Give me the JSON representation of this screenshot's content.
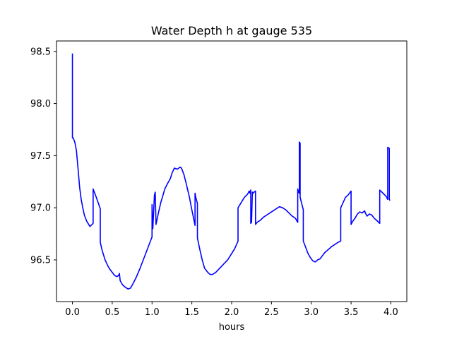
{
  "chart_data": {
    "type": "line",
    "title": "Water Depth h at gauge 535",
    "xlabel": "hours",
    "ylabel": "",
    "xlim": [
      -0.2,
      4.2
    ],
    "ylim": [
      96.1,
      98.6
    ],
    "xticks": [
      0.0,
      0.5,
      1.0,
      1.5,
      2.0,
      2.5,
      3.0,
      3.5,
      4.0
    ],
    "xtick_labels": [
      "0.0",
      "0.5",
      "1.0",
      "1.5",
      "2.0",
      "2.5",
      "3.0",
      "3.5",
      "4.0"
    ],
    "yticks": [
      96.5,
      97.0,
      97.5,
      98.0,
      98.5
    ],
    "ytick_labels": [
      "96.5",
      "97.0",
      "97.5",
      "98.0",
      "98.5"
    ],
    "grid": false,
    "legend": "none",
    "series": [
      {
        "color": "#0000ff",
        "x": [
          0.0,
          0.0,
          0.0,
          0.01,
          0.03,
          0.05,
          0.07,
          0.09,
          0.11,
          0.13,
          0.15,
          0.18,
          0.22,
          0.26,
          0.26,
          0.3,
          0.35,
          0.35,
          0.37,
          0.39,
          0.41,
          0.44,
          0.47,
          0.5,
          0.53,
          0.56,
          0.58,
          0.59,
          0.6,
          0.63,
          0.66,
          0.7,
          0.73,
          0.76,
          0.8,
          0.85,
          0.9,
          0.95,
          1.0,
          1.0,
          1.01,
          1.03,
          1.04,
          1.05,
          1.05,
          1.08,
          1.11,
          1.13,
          1.16,
          1.2,
          1.23,
          1.25,
          1.28,
          1.32,
          1.35,
          1.37,
          1.4,
          1.43,
          1.47,
          1.5,
          1.54,
          1.54,
          1.55,
          1.57,
          1.57,
          1.6,
          1.63,
          1.66,
          1.7,
          1.73,
          1.76,
          1.8,
          1.85,
          1.9,
          1.95,
          2.0,
          2.04,
          2.08,
          2.08,
          2.12,
          2.16,
          2.2,
          2.22,
          2.23,
          2.24,
          2.24,
          2.25,
          2.26,
          2.26,
          2.28,
          2.3,
          2.3,
          2.32,
          2.36,
          2.4,
          2.44,
          2.48,
          2.52,
          2.56,
          2.6,
          2.64,
          2.68,
          2.72,
          2.76,
          2.8,
          2.83,
          2.83,
          2.84,
          2.85,
          2.85,
          2.86,
          2.86,
          2.9,
          2.9,
          2.93,
          2.96,
          2.99,
          3.02,
          3.05,
          3.08,
          3.11,
          3.14,
          3.17,
          3.2,
          3.23,
          3.26,
          3.3,
          3.34,
          3.37,
          3.37,
          3.4,
          3.43,
          3.46,
          3.49,
          3.5,
          3.5,
          3.52,
          3.55,
          3.58,
          3.61,
          3.64,
          3.67,
          3.68,
          3.7,
          3.73,
          3.76,
          3.79,
          3.82,
          3.86,
          3.86,
          3.9,
          3.94,
          3.96,
          3.96,
          3.98,
          3.98,
          3.98,
          3.99
        ]
      }
    ]
  }
}
